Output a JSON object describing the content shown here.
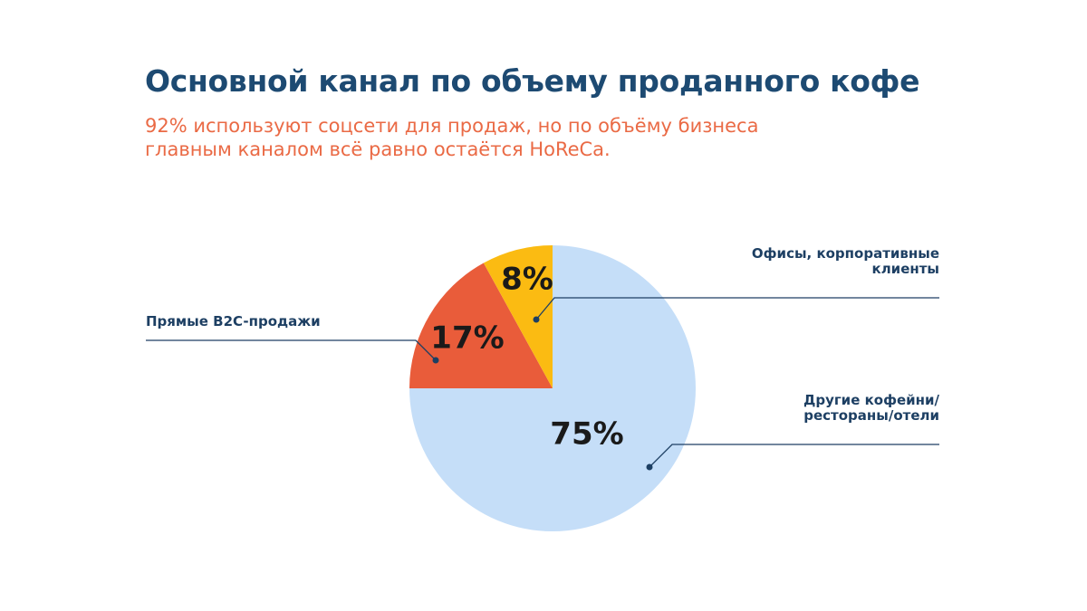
{
  "title": "Основной канал по объему проданного кофе",
  "subtitle_line1": "92% используют соцсети для продаж, но по объёму бизнеса",
  "subtitle_line2": "главным каналом всё равно остаётся HoReCa.",
  "colors": {
    "title": "#1d4a72",
    "subtitle": "#ea6a45",
    "callout_text": "#1d3f63",
    "callout_line": "#1d3f63"
  },
  "chart_data": {
    "type": "pie",
    "start": "12 o'clock",
    "direction": "clockwise",
    "slices": [
      {
        "label_lines": [
          "Другие кофейни/",
          "рестораны/отели"
        ],
        "value": 75,
        "label_pct": "75%",
        "color": "#c5def8",
        "callout_side": "right"
      },
      {
        "label_lines": [
          "Прямые B2C-продажи"
        ],
        "value": 17,
        "label_pct": "17%",
        "color": "#e95c3a",
        "callout_side": "left"
      },
      {
        "label_lines": [
          "Офисы, корпоративные",
          "клиенты"
        ],
        "value": 8,
        "label_pct": "8%",
        "color": "#fbbb12",
        "callout_side": "right"
      }
    ]
  }
}
